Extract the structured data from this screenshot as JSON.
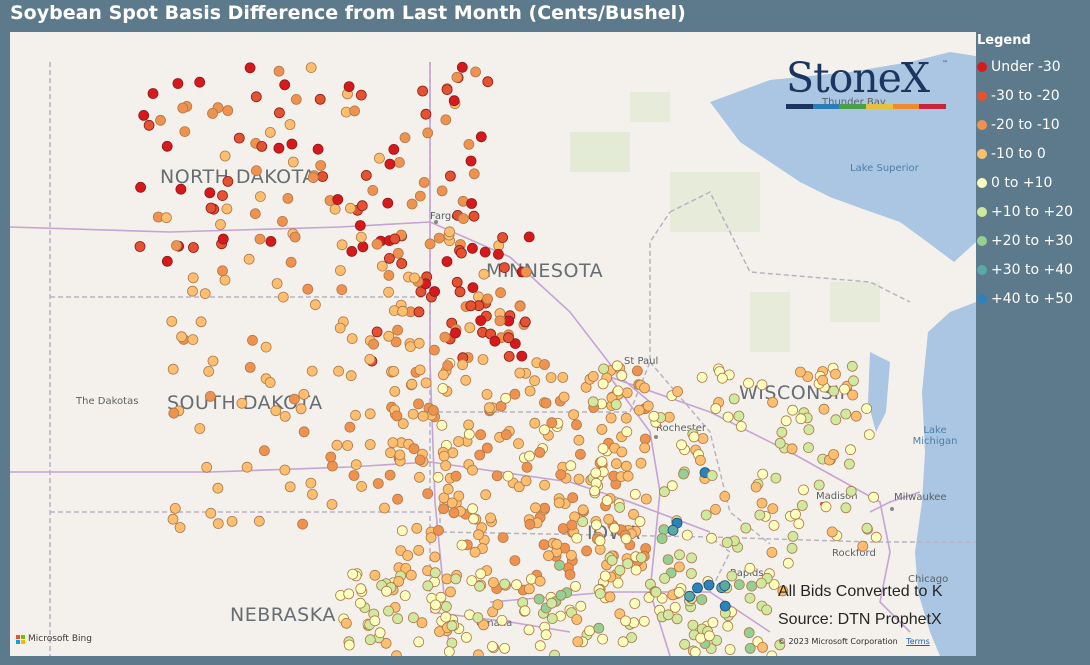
{
  "title": "Soybean Spot Basis Difference from Last Month (Cents/Bushel)",
  "legend": {
    "title": "Legend",
    "items": [
      {
        "label": "Under -30",
        "color": "#d7191c"
      },
      {
        "label": "-30 to -20",
        "color": "#e4522f"
      },
      {
        "label": "-20 to -10",
        "color": "#f0924f"
      },
      {
        "label": "-10 to 0",
        "color": "#fdbf6f"
      },
      {
        "label": "0 to +10",
        "color": "#ffffbf"
      },
      {
        "label": "+10 to +20",
        "color": "#cfeaa0"
      },
      {
        "label": "+20 to +30",
        "color": "#94cf94"
      },
      {
        "label": "+30 to +40",
        "color": "#5aa9a4"
      },
      {
        "label": "+40 to +50",
        "color": "#2b83ba"
      }
    ]
  },
  "map": {
    "states": [
      "NORTH DAKOTA",
      "MINNESOTA",
      "SOUTH DAKOTA",
      "WISCONSIN",
      "NEBRASKA",
      "IOWA"
    ],
    "places": [
      "Fargo",
      "St Paul",
      "Rochester",
      "Madison",
      "Milwaukee",
      "Rockford",
      "Chicago",
      "Omaha",
      "Rapids",
      "Thunder Bay",
      "The Dakotas"
    ],
    "water": [
      "Lake Superior",
      "Lake Michigan"
    ]
  },
  "logo": {
    "text": "StoneX",
    "tm": "™",
    "bar_colors": [
      "#1c355e",
      "#2a7db8",
      "#4aa04a",
      "#e3c33a",
      "#f08a2e",
      "#c8233b"
    ]
  },
  "notes": {
    "converted": "All Bids Converted to K",
    "source": "Source: DTN ProphetX"
  },
  "attribution": {
    "bing": "Microsoft Bing",
    "copyright": "© 2023 Microsoft Corporation",
    "terms": "Terms"
  }
}
